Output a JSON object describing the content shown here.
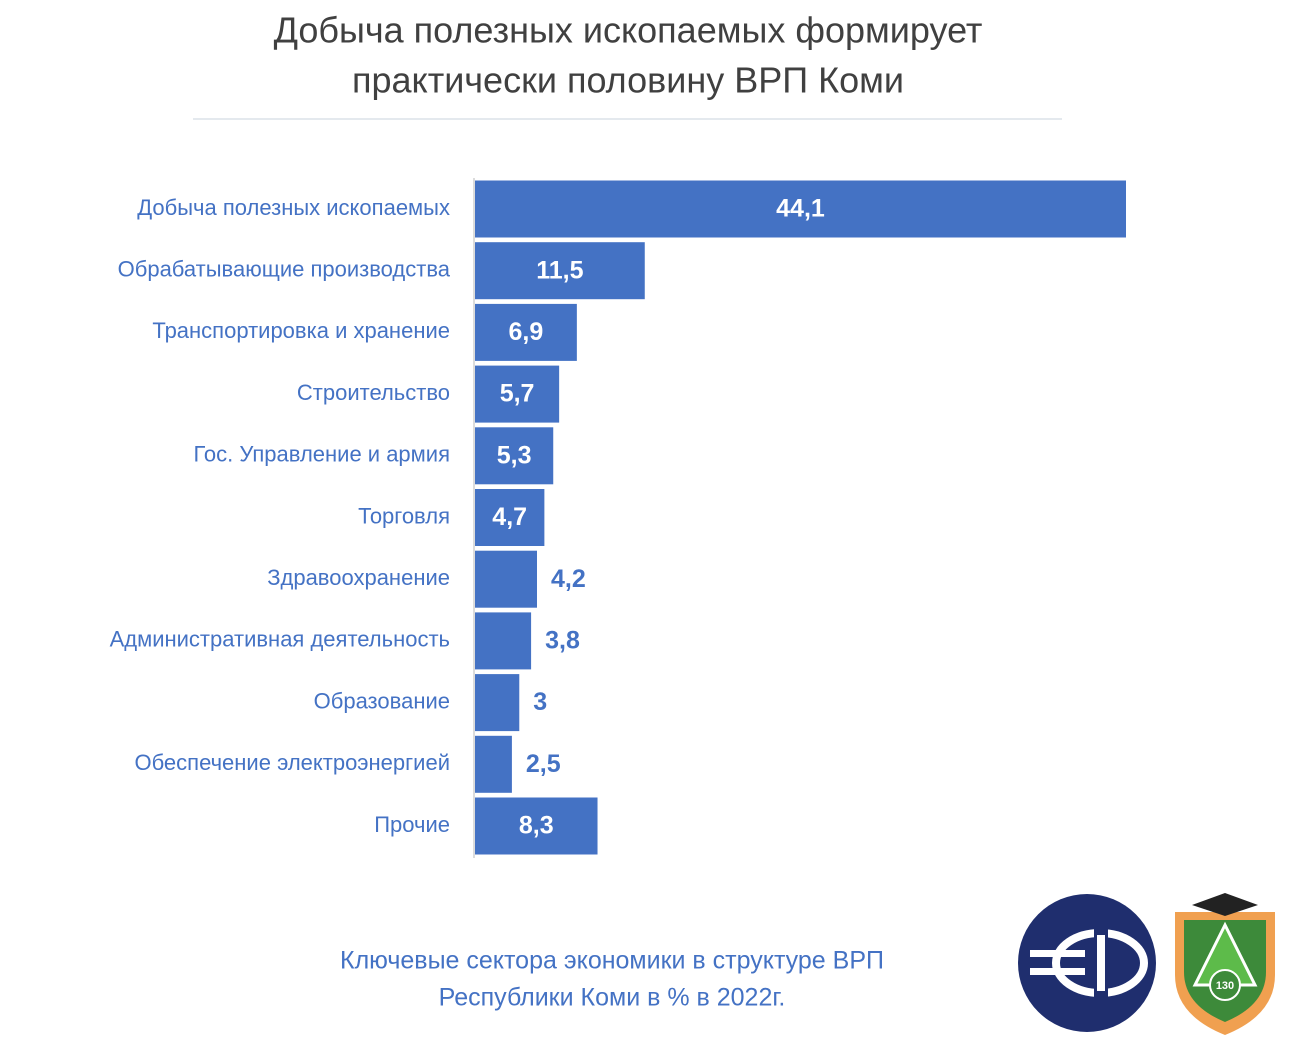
{
  "chart_data": {
    "type": "barh",
    "title": [
      "Добыча полезных ископаемых формирует",
      "практически половину ВРП Коми"
    ],
    "caption": [
      "Ключевые сектора экономики в структуре ВРП",
      "Республики Коми в % в 2022г."
    ],
    "categories": [
      "Добыча полезных ископаемых",
      "Обрабатывающие производства",
      "Транспортировка и хранение",
      "Строительство",
      "Гос. Управление и армия",
      "Торговля",
      "Здравоохранение",
      "Административная деятельность",
      "Образование",
      "Обеспечение электроэнергией",
      "Прочие"
    ],
    "values": [
      44.1,
      11.5,
      6.9,
      5.7,
      5.3,
      4.7,
      4.2,
      3.8,
      3,
      2.5,
      8.3
    ],
    "value_labels": [
      "44,1",
      "11,5",
      "6,9",
      "5,7",
      "5,3",
      "4,7",
      "4,2",
      "3,8",
      "3",
      "2,5",
      "8,3"
    ],
    "color": "#4472c4"
  },
  "logo": {
    "text": "130"
  }
}
